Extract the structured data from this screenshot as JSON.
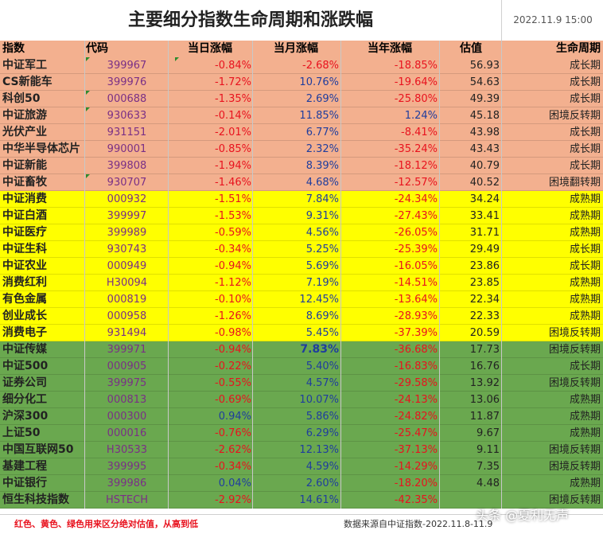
{
  "title": "主要细分指数生命周期和涨跌幅",
  "datetime": "2022.11.9 15:00",
  "headers": {
    "name": "指数",
    "code": "代码",
    "day": "当日涨幅",
    "month": "当月涨幅",
    "year": "当年涨幅",
    "valuation": "估值",
    "stage": "生命周期"
  },
  "colors": {
    "orange_group": "#f3b08f",
    "yellow_group": "#ffff00",
    "green_group": "#6aa84f",
    "negative": "#e8121e",
    "positive": "#1f3d9e",
    "code_text": "#7a2f86"
  },
  "rows": [
    {
      "group": "orange",
      "name": "中证军工",
      "code": "399967",
      "day": "-0.84%",
      "month": "-2.68%",
      "year": "-18.85%",
      "valuation": "56.93",
      "stage": "成长期"
    },
    {
      "group": "orange",
      "name": "CS新能车",
      "code": "399976",
      "day": "-1.72%",
      "month": "10.76%",
      "year": "-19.64%",
      "valuation": "54.63",
      "stage": "成长期"
    },
    {
      "group": "orange",
      "name": "科创50",
      "code": "000688",
      "day": "-1.35%",
      "month": "2.69%",
      "year": "-25.80%",
      "valuation": "49.39",
      "stage": "成长期"
    },
    {
      "group": "orange",
      "name": "中证旅游",
      "code": "930633",
      "day": "-0.14%",
      "month": "11.85%",
      "year": "1.24%",
      "valuation": "45.18",
      "stage": "困境反转期"
    },
    {
      "group": "orange",
      "name": "光伏产业",
      "code": "931151",
      "day": "-2.01%",
      "month": "6.77%",
      "year": "-8.41%",
      "valuation": "43.98",
      "stage": "成长期"
    },
    {
      "group": "orange",
      "name": "中华半导体芯片",
      "code": "990001",
      "day": "-0.85%",
      "month": "2.32%",
      "year": "-35.24%",
      "valuation": "43.43",
      "stage": "成长期"
    },
    {
      "group": "orange",
      "name": "中证新能",
      "code": "399808",
      "day": "-1.94%",
      "month": "8.39%",
      "year": "-18.12%",
      "valuation": "40.79",
      "stage": "成长期"
    },
    {
      "group": "orange",
      "name": "中证畜牧",
      "code": "930707",
      "day": "-1.46%",
      "month": "4.68%",
      "year": "-12.57%",
      "valuation": "40.52",
      "stage": "困境翻转期"
    },
    {
      "group": "yellow",
      "name": "中证消费",
      "code": "000932",
      "day": "-1.51%",
      "month": "7.84%",
      "year": "-24.34%",
      "valuation": "34.24",
      "stage": "成熟期"
    },
    {
      "group": "yellow",
      "name": "中证白酒",
      "code": "399997",
      "day": "-1.53%",
      "month": "9.31%",
      "year": "-27.43%",
      "valuation": "33.41",
      "stage": "成熟期"
    },
    {
      "group": "yellow",
      "name": "中证医疗",
      "code": "399989",
      "day": "-0.59%",
      "month": "4.56%",
      "year": "-26.05%",
      "valuation": "31.71",
      "stage": "成熟期"
    },
    {
      "group": "yellow",
      "name": "中证生科",
      "code": "930743",
      "day": "-0.34%",
      "month": "5.25%",
      "year": "-25.39%",
      "valuation": "29.49",
      "stage": "成长期"
    },
    {
      "group": "yellow",
      "name": "中证农业",
      "code": "000949",
      "day": "-0.94%",
      "month": "5.69%",
      "year": "-16.05%",
      "valuation": "23.86",
      "stage": "成长期"
    },
    {
      "group": "yellow",
      "name": "消费红利",
      "code": "H30094",
      "day": "-1.12%",
      "month": "7.19%",
      "year": "-14.51%",
      "valuation": "23.85",
      "stage": "成熟期"
    },
    {
      "group": "yellow",
      "name": "有色金属",
      "code": "000819",
      "day": "-0.10%",
      "month": "12.45%",
      "year": "-13.64%",
      "valuation": "22.34",
      "stage": "成熟期"
    },
    {
      "group": "yellow",
      "name": "创业成长",
      "code": "000958",
      "day": "-1.26%",
      "month": "8.69%",
      "year": "-28.93%",
      "valuation": "22.33",
      "stage": "成熟期"
    },
    {
      "group": "yellow",
      "name": "消费电子",
      "code": "931494",
      "day": "-0.98%",
      "month": "5.45%",
      "year": "-37.39%",
      "valuation": "20.59",
      "stage": "困境反转期"
    },
    {
      "group": "green",
      "name": "中证传媒",
      "code": "399971",
      "day": "-0.94%",
      "month": "7.83%",
      "year": "-36.68%",
      "valuation": "17.73",
      "stage": "困境反转期",
      "month_bold": true
    },
    {
      "group": "green",
      "name": "中证500",
      "code": "000905",
      "day": "-0.22%",
      "month": "5.40%",
      "year": "-16.83%",
      "valuation": "16.76",
      "stage": "成长期"
    },
    {
      "group": "green",
      "name": "证券公司",
      "code": "399975",
      "day": "-0.55%",
      "month": "4.57%",
      "year": "-29.58%",
      "valuation": "13.92",
      "stage": "困境反转期"
    },
    {
      "group": "green",
      "name": "细分化工",
      "code": "000813",
      "day": "-0.69%",
      "month": "10.07%",
      "year": "-24.13%",
      "valuation": "13.06",
      "stage": "成熟期"
    },
    {
      "group": "green",
      "name": "沪深300",
      "code": "000300",
      "day": "0.94%",
      "month": "5.86%",
      "year": "-24.82%",
      "valuation": "11.87",
      "stage": "成熟期"
    },
    {
      "group": "green",
      "name": "上证50",
      "code": "000016",
      "day": "-0.76%",
      "month": "6.29%",
      "year": "-25.47%",
      "valuation": "9.67",
      "stage": "成熟期"
    },
    {
      "group": "green",
      "name": "中国互联网50",
      "code": "H30533",
      "day": "-2.62%",
      "month": "12.13%",
      "year": "-37.13%",
      "valuation": "9.11",
      "stage": "困境反转期"
    },
    {
      "group": "green",
      "name": "基建工程",
      "code": "399995",
      "day": "-0.34%",
      "month": "4.59%",
      "year": "-14.29%",
      "valuation": "7.35",
      "stage": "困境反转期"
    },
    {
      "group": "green",
      "name": "中证银行",
      "code": "399986",
      "day": "0.04%",
      "month": "2.60%",
      "year": "-18.20%",
      "valuation": "4.48",
      "stage": "成熟期"
    },
    {
      "group": "green",
      "name": "恒生科技指数",
      "code": "HSTECH",
      "day": "-2.92%",
      "month": "14.61%",
      "year": "-42.35%",
      "valuation": "",
      "stage": "困境反转期"
    }
  ],
  "footer": {
    "note": "红色、黄色、绿色用来区分绝对估值，从高到低",
    "source": "数据来源自中证指数-2022.11.8-11.9"
  },
  "watermark": "头条 @夏利无声"
}
